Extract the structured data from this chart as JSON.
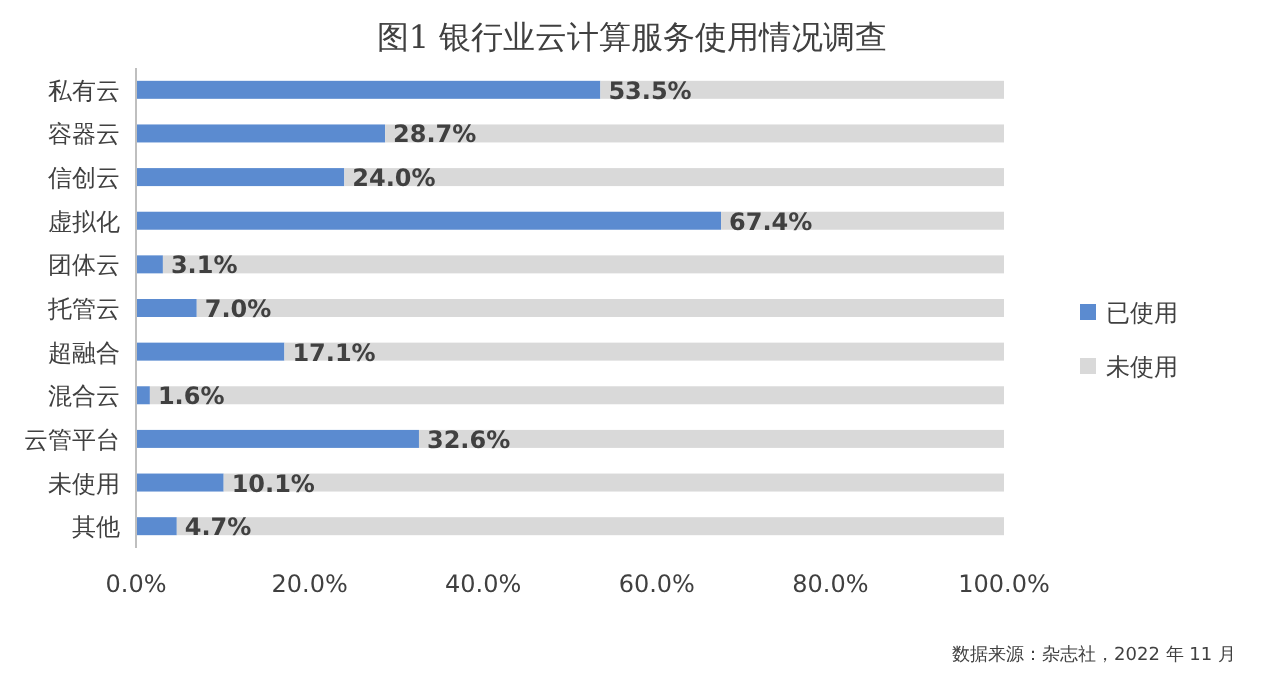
{
  "chart_data": {
    "type": "bar",
    "orientation": "horizontal",
    "stacked": true,
    "title": "图1 银行业云计算服务使用情况调查",
    "categories": [
      "私有云",
      "容器云",
      "信创云",
      "虚拟化",
      "团体云",
      "托管云",
      "超融合",
      "混合云",
      "云管平台",
      "未使用",
      "其他"
    ],
    "series": [
      {
        "name": "已使用",
        "color": "#5b8bd0",
        "values": [
          53.5,
          28.7,
          24.0,
          67.4,
          3.1,
          7.0,
          17.1,
          1.6,
          32.6,
          10.1,
          4.7
        ],
        "value_labels": [
          "53.5%",
          "28.7%",
          "24.0%",
          "67.4%",
          "3.1%",
          "7.0%",
          "17.1%",
          "1.6%",
          "32.6%",
          "10.1%",
          "4.7%"
        ]
      },
      {
        "name": "未使用",
        "color": "#d9d9d9",
        "values": [
          46.5,
          71.3,
          76.0,
          32.6,
          96.9,
          93.0,
          82.9,
          98.4,
          67.4,
          89.9,
          95.3
        ]
      }
    ],
    "xlim": [
      0,
      100
    ],
    "xticks": [
      {
        "value": 0,
        "label": "0.0%"
      },
      {
        "value": 20,
        "label": "20.0%"
      },
      {
        "value": 40,
        "label": "40.0%"
      },
      {
        "value": 60,
        "label": "60.0%"
      },
      {
        "value": 80,
        "label": "80.0%"
      },
      {
        "value": 100,
        "label": "100.0%"
      }
    ],
    "legend": "right",
    "annotations": [
      "数据来源：杂志社，2022 年 11 月"
    ]
  }
}
